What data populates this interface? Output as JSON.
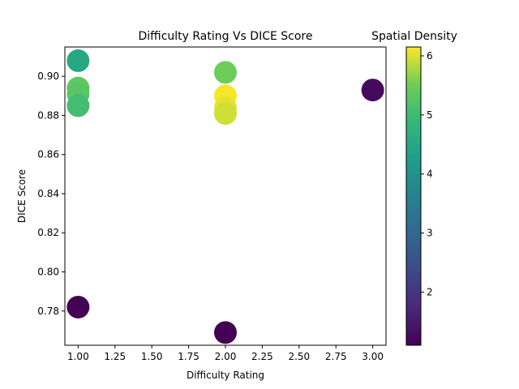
{
  "chart_data": {
    "type": "scatter",
    "title": "Difficulty Rating Vs DICE Score",
    "xlabel": "Difficulty Rating",
    "ylabel": "DICE Score",
    "xlim": [
      0.91,
      3.09
    ],
    "ylim": [
      0.7625,
      0.915
    ],
    "xticks": [
      "1.00",
      "1.25",
      "1.50",
      "1.75",
      "2.00",
      "2.25",
      "2.50",
      "2.75",
      "3.00"
    ],
    "yticks": [
      "0.78",
      "0.80",
      "0.82",
      "0.84",
      "0.86",
      "0.88",
      "0.90"
    ],
    "grid": false,
    "colormap": "viridis",
    "colorbar": {
      "label": "Spatial Density",
      "range": [
        1.1,
        6.15
      ],
      "ticks": [
        "2",
        "3",
        "4",
        "5",
        "6"
      ]
    },
    "points": [
      {
        "x": 1.0,
        "y": 0.908,
        "c": 4.5
      },
      {
        "x": 1.0,
        "y": 0.894,
        "c": 5.35
      },
      {
        "x": 1.0,
        "y": 0.891,
        "c": 5.3
      },
      {
        "x": 1.0,
        "y": 0.885,
        "c": 5.05
      },
      {
        "x": 1.0,
        "y": 0.782,
        "c": 1.12
      },
      {
        "x": 2.0,
        "y": 0.902,
        "c": 5.5
      },
      {
        "x": 2.0,
        "y": 0.89,
        "c": 6.12
      },
      {
        "x": 2.0,
        "y": 0.884,
        "c": 6.05
      },
      {
        "x": 2.0,
        "y": 0.881,
        "c": 5.95
      },
      {
        "x": 2.0,
        "y": 0.769,
        "c": 1.1
      },
      {
        "x": 3.0,
        "y": 0.893,
        "c": 1.25
      }
    ]
  }
}
